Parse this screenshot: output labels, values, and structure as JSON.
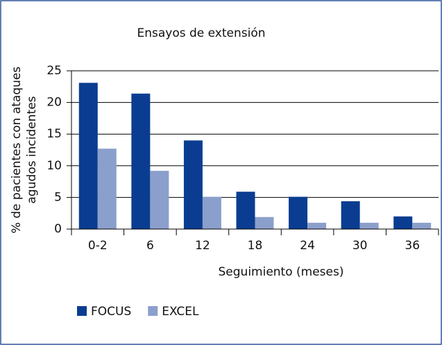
{
  "chart_data": {
    "type": "bar",
    "title": "Ensayos de extensión",
    "y_label": [
      "% de pacientes con ataques",
      "agudos incidentes"
    ],
    "x_label": "Seguimiento (meses)",
    "categories": [
      "0-2",
      "6",
      "12",
      "18",
      "24",
      "30",
      "36"
    ],
    "series": [
      {
        "name": "FOCUS",
        "color": "#0a3d91",
        "values": [
          23.1,
          21.4,
          14,
          5.9,
          5.1,
          4.4,
          2
        ]
      },
      {
        "name": "EXCEL",
        "color": "#8b9fcc",
        "values": [
          12.7,
          9.2,
          5.1,
          1.9,
          1,
          1,
          1
        ]
      }
    ],
    "ylim": [
      0,
      25
    ],
    "yticks": [
      0,
      5,
      10,
      15,
      20,
      25
    ],
    "grid": true,
    "legend": "bottom-left"
  }
}
